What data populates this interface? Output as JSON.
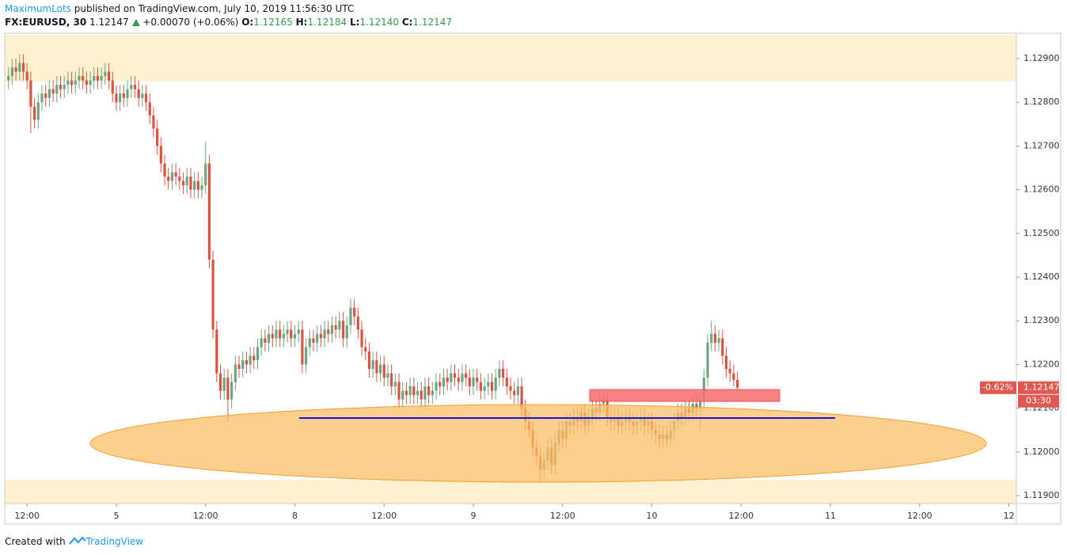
{
  "header": {
    "publisher": "MaximumLots",
    "published": "published on TradingView.com, July 10, 2019 11:56:30 UTC",
    "symbol": "FX:EURUSD, 30",
    "price": "1.12147",
    "change": "+0.00070 (+0.06%)",
    "open_label": "O:",
    "open": "1.12165",
    "high_label": "H:",
    "high": "1.12184",
    "low_label": "L:",
    "low": "1.12140",
    "close_label": "C:",
    "close": "1.12147"
  },
  "footer": {
    "text": "Created with",
    "brand": "TradingView"
  },
  "chart_data": {
    "type": "candlestick",
    "open": [
      1.1285,
      1.1286,
      1.1288,
      1.1287,
      1.1289,
      1.1287,
      1.1285,
      1.1279,
      1.1276,
      1.128,
      1.1282,
      1.1281,
      1.1283,
      1.1282,
      1.1284,
      1.1283,
      1.1284,
      1.1285,
      1.1284,
      1.1285,
      1.1286,
      1.1285,
      1.1284,
      1.1285,
      1.1286,
      1.1285,
      1.1286,
      1.1287,
      1.1285,
      1.1282,
      1.128,
      1.1282,
      1.1281,
      1.1283,
      1.1284,
      1.1283,
      1.1281,
      1.1282,
      1.128,
      1.1277,
      1.1274,
      1.127,
      1.1266,
      1.1263,
      1.1262,
      1.1264,
      1.1263,
      1.1262,
      1.1261,
      1.1263,
      1.126,
      1.1262,
      1.126,
      1.1261,
      1.1266,
      1.1244,
      1.1228,
      1.1218,
      1.1214,
      1.1217,
      1.1212,
      1.1216,
      1.122,
      1.1219,
      1.1221,
      1.122,
      1.1222,
      1.1221,
      1.1224,
      1.1226,
      1.1225,
      1.1227,
      1.1226,
      1.1228,
      1.1226,
      1.1227,
      1.1228,
      1.1226,
      1.1227,
      1.1228,
      1.122,
      1.1224,
      1.1226,
      1.1225,
      1.1227,
      1.1226,
      1.1228,
      1.1227,
      1.1229,
      1.1228,
      1.123,
      1.1226,
      1.1229,
      1.1233,
      1.1231,
      1.1228,
      1.1224,
      1.1223,
      1.1219,
      1.1221,
      1.1218,
      1.122,
      1.1217,
      1.1218,
      1.1215,
      1.1216,
      1.1212,
      1.1214,
      1.1213,
      1.1215,
      1.1213,
      1.1214,
      1.1212,
      1.1215,
      1.1213,
      1.1214,
      1.1216,
      1.1215,
      1.1217,
      1.1216,
      1.1218,
      1.1217,
      1.1216,
      1.1218,
      1.1217,
      1.1215,
      1.1217,
      1.1216,
      1.1214,
      1.1215,
      1.1216,
      1.1214,
      1.1217,
      1.1219,
      1.1217,
      1.1215,
      1.1214,
      1.1213,
      1.1215,
      1.121,
      1.1207,
      1.1205,
      1.1201,
      1.1199,
      1.1196,
      1.1198,
      1.1201,
      1.1197,
      1.1202,
      1.1205,
      1.1203,
      1.1207,
      1.1206,
      1.1208,
      1.1207,
      1.1209,
      1.1206,
      1.1208,
      1.121,
      1.1209,
      1.1211,
      1.1212,
      1.1208,
      1.1207,
      1.1208,
      1.1206,
      1.1207,
      1.1208,
      1.1207,
      1.1206,
      1.1207,
      1.1208,
      1.1206,
      1.1207,
      1.1205,
      1.1204,
      1.1203,
      1.1204,
      1.1203,
      1.1205,
      1.1207,
      1.1209,
      1.1208,
      1.121,
      1.1209,
      1.1211,
      1.121,
      1.1212,
      1.1217,
      1.1225,
      1.1227,
      1.1225,
      1.1226,
      1.1222,
      1.1219,
      1.1218,
      1.12165
    ],
    "high": [
      1.1288,
      1.129,
      1.129,
      1.1291,
      1.1291,
      1.1289,
      1.1287,
      1.1281,
      1.1282,
      1.1284,
      1.1284,
      1.1285,
      1.1285,
      1.1286,
      1.1286,
      1.1286,
      1.1287,
      1.1287,
      1.1287,
      1.1288,
      1.1288,
      1.1287,
      1.1287,
      1.1288,
      1.1288,
      1.1288,
      1.1289,
      1.1289,
      1.1287,
      1.1284,
      1.1284,
      1.1284,
      1.1285,
      1.1286,
      1.1286,
      1.1285,
      1.1284,
      1.1284,
      1.1282,
      1.1279,
      1.1276,
      1.1272,
      1.1268,
      1.1265,
      1.1266,
      1.1266,
      1.1265,
      1.1264,
      1.1265,
      1.1265,
      1.1264,
      1.1264,
      1.1263,
      1.1271,
      1.1268,
      1.1246,
      1.123,
      1.122,
      1.1219,
      1.1219,
      1.1218,
      1.1222,
      1.1222,
      1.1223,
      1.1223,
      1.1224,
      1.1224,
      1.1226,
      1.1228,
      1.1228,
      1.1229,
      1.1229,
      1.123,
      1.123,
      1.1229,
      1.123,
      1.123,
      1.1229,
      1.123,
      1.123,
      1.1226,
      1.1228,
      1.1228,
      1.1229,
      1.1229,
      1.123,
      1.123,
      1.1231,
      1.1231,
      1.1232,
      1.1232,
      1.1231,
      1.1235,
      1.1235,
      1.1233,
      1.123,
      1.1226,
      1.1225,
      1.1223,
      1.1223,
      1.1222,
      1.1222,
      1.122,
      1.122,
      1.1218,
      1.1218,
      1.1216,
      1.1216,
      1.1217,
      1.1217,
      1.1216,
      1.1216,
      1.1217,
      1.1217,
      1.1216,
      1.1218,
      1.1218,
      1.1219,
      1.1219,
      1.122,
      1.122,
      1.1219,
      1.122,
      1.122,
      1.1219,
      1.1219,
      1.1219,
      1.1218,
      1.1217,
      1.1218,
      1.1218,
      1.1219,
      1.1221,
      1.1221,
      1.1219,
      1.1217,
      1.1216,
      1.1217,
      1.1217,
      1.1212,
      1.1209,
      1.1207,
      1.1203,
      1.1201,
      1.12,
      1.1203,
      1.1203,
      1.1204,
      1.1207,
      1.1207,
      1.1209,
      1.1209,
      1.121,
      1.121,
      1.1211,
      1.1211,
      1.121,
      1.1212,
      1.1212,
      1.1213,
      1.1214,
      1.1214,
      1.121,
      1.121,
      1.121,
      1.1209,
      1.121,
      1.121,
      1.1209,
      1.1209,
      1.121,
      1.121,
      1.1209,
      1.1209,
      1.1207,
      1.1206,
      1.1206,
      1.1206,
      1.1207,
      1.1209,
      1.1211,
      1.1211,
      1.1212,
      1.1212,
      1.1213,
      1.1213,
      1.1214,
      1.1219,
      1.1227,
      1.123,
      1.1229,
      1.1228,
      1.1228,
      1.1224,
      1.1221,
      1.122,
      1.12184
    ],
    "low": [
      1.1283,
      1.1284,
      1.1285,
      1.1285,
      1.1285,
      1.1283,
      1.1273,
      1.1274,
      1.1274,
      1.1278,
      1.1279,
      1.1279,
      1.128,
      1.128,
      1.1281,
      1.1281,
      1.1282,
      1.1282,
      1.1282,
      1.1283,
      1.1283,
      1.1282,
      1.1282,
      1.1283,
      1.1283,
      1.1283,
      1.1284,
      1.1283,
      1.128,
      1.1278,
      1.1278,
      1.1279,
      1.1279,
      1.1281,
      1.1281,
      1.1279,
      1.1279,
      1.1278,
      1.1275,
      1.1272,
      1.1268,
      1.1264,
      1.1261,
      1.126,
      1.126,
      1.1261,
      1.126,
      1.1259,
      1.1259,
      1.1258,
      1.1258,
      1.1258,
      1.1258,
      1.1259,
      1.1242,
      1.1226,
      1.1216,
      1.1212,
      1.1212,
      1.1207,
      1.121,
      1.1214,
      1.1217,
      1.1217,
      1.1218,
      1.1218,
      1.1219,
      1.1219,
      1.1222,
      1.1223,
      1.1223,
      1.1224,
      1.1224,
      1.1224,
      1.1224,
      1.1225,
      1.1224,
      1.1224,
      1.1225,
      1.1218,
      1.1218,
      1.1222,
      1.1223,
      1.1223,
      1.1224,
      1.1224,
      1.1225,
      1.1225,
      1.1226,
      1.1226,
      1.1224,
      1.1224,
      1.1227,
      1.1229,
      1.1226,
      1.1222,
      1.1221,
      1.1217,
      1.1217,
      1.1216,
      1.1216,
      1.1215,
      1.1215,
      1.1213,
      1.1213,
      1.121,
      1.121,
      1.1211,
      1.1211,
      1.1211,
      1.1211,
      1.121,
      1.121,
      1.1211,
      1.1211,
      1.1212,
      1.1213,
      1.1213,
      1.1214,
      1.1214,
      1.1215,
      1.1214,
      1.1214,
      1.1215,
      1.1213,
      1.1213,
      1.1214,
      1.1212,
      1.1212,
      1.1213,
      1.1212,
      1.1212,
      1.1215,
      1.1215,
      1.1213,
      1.1212,
      1.1211,
      1.1211,
      1.1208,
      1.1205,
      1.1203,
      1.1199,
      1.1197,
      1.1193,
      1.1194,
      1.1196,
      1.1195,
      1.1195,
      1.12,
      1.1201,
      1.1201,
      1.1204,
      1.1204,
      1.1205,
      1.1205,
      1.1204,
      1.1204,
      1.1206,
      1.1207,
      1.1207,
      1.1209,
      1.1206,
      1.1205,
      1.1205,
      1.1204,
      1.1204,
      1.1205,
      1.1205,
      1.1204,
      1.1204,
      1.1205,
      1.1204,
      1.1204,
      1.1203,
      1.1202,
      1.1201,
      1.1201,
      1.1201,
      1.1201,
      1.1203,
      1.1205,
      1.1206,
      1.1206,
      1.1207,
      1.1207,
      1.1208,
      1.1205,
      1.121,
      1.1215,
      1.1223,
      1.1223,
      1.1223,
      1.122,
      1.1217,
      1.1216,
      1.1215,
      1.1214
    ],
    "close": [
      1.1286,
      1.1288,
      1.1287,
      1.1289,
      1.1287,
      1.1285,
      1.1279,
      1.1276,
      1.128,
      1.1282,
      1.1281,
      1.1283,
      1.1282,
      1.1284,
      1.1283,
      1.1284,
      1.1285,
      1.1284,
      1.1285,
      1.1286,
      1.1285,
      1.1284,
      1.1285,
      1.1286,
      1.1285,
      1.1286,
      1.1287,
      1.1285,
      1.1282,
      1.128,
      1.1282,
      1.1281,
      1.1283,
      1.1284,
      1.1283,
      1.1281,
      1.1282,
      1.128,
      1.1277,
      1.1274,
      1.127,
      1.1266,
      1.1263,
      1.1262,
      1.1264,
      1.1263,
      1.1262,
      1.1261,
      1.1263,
      1.126,
      1.1262,
      1.126,
      1.1261,
      1.1266,
      1.1244,
      1.1228,
      1.1218,
      1.1214,
      1.1217,
      1.1212,
      1.1216,
      1.122,
      1.1219,
      1.1221,
      1.122,
      1.1222,
      1.1221,
      1.1224,
      1.1226,
      1.1225,
      1.1227,
      1.1226,
      1.1228,
      1.1226,
      1.1227,
      1.1228,
      1.1226,
      1.1227,
      1.1228,
      1.122,
      1.1224,
      1.1226,
      1.1225,
      1.1227,
      1.1226,
      1.1228,
      1.1227,
      1.1229,
      1.1228,
      1.123,
      1.1226,
      1.1229,
      1.1233,
      1.1231,
      1.1228,
      1.1224,
      1.1223,
      1.1219,
      1.1221,
      1.1218,
      1.122,
      1.1217,
      1.1218,
      1.1215,
      1.1216,
      1.1212,
      1.1214,
      1.1213,
      1.1215,
      1.1213,
      1.1214,
      1.1212,
      1.1215,
      1.1213,
      1.1214,
      1.1216,
      1.1215,
      1.1217,
      1.1216,
      1.1218,
      1.1217,
      1.1216,
      1.1218,
      1.1217,
      1.1215,
      1.1217,
      1.1216,
      1.1214,
      1.1215,
      1.1216,
      1.1214,
      1.1217,
      1.1219,
      1.1217,
      1.1215,
      1.1214,
      1.1213,
      1.1215,
      1.121,
      1.1207,
      1.1205,
      1.1201,
      1.1199,
      1.1196,
      1.1198,
      1.1201,
      1.1197,
      1.1202,
      1.1205,
      1.1203,
      1.1207,
      1.1206,
      1.1208,
      1.1207,
      1.1209,
      1.1206,
      1.1208,
      1.121,
      1.1209,
      1.1211,
      1.1212,
      1.1208,
      1.1207,
      1.1208,
      1.1206,
      1.1207,
      1.1208,
      1.1207,
      1.1206,
      1.1207,
      1.1208,
      1.1206,
      1.1207,
      1.1205,
      1.1204,
      1.1203,
      1.1204,
      1.1203,
      1.1205,
      1.1207,
      1.1209,
      1.1208,
      1.121,
      1.1209,
      1.1211,
      1.121,
      1.1212,
      1.1217,
      1.1225,
      1.1227,
      1.1225,
      1.1226,
      1.1222,
      1.1219,
      1.1218,
      1.12165,
      1.12147
    ],
    "up_color": "#6ba583",
    "down_color": "#d75442",
    "xlim": [
      -1,
      271
    ],
    "xticks": [
      {
        "value": 5,
        "label": "12:00"
      },
      {
        "value": 29,
        "label": "5"
      },
      {
        "value": 53,
        "label": "12:00"
      },
      {
        "value": 77,
        "label": "8"
      },
      {
        "value": 101,
        "label": "12:00"
      },
      {
        "value": 125,
        "label": "9"
      },
      {
        "value": 149,
        "label": "12:00"
      },
      {
        "value": 173,
        "label": "10"
      },
      {
        "value": 197,
        "label": "12:00"
      },
      {
        "value": 221,
        "label": "11"
      },
      {
        "value": 245,
        "label": "12:00"
      },
      {
        "value": 269,
        "label": "12"
      }
    ],
    "ylim": [
      1.11882,
      1.12958
    ],
    "yticks": [
      {
        "value": 1.119,
        "label": "1.11900"
      },
      {
        "value": 1.12,
        "label": "1.12000"
      },
      {
        "value": 1.121,
        "label": "1.12100"
      },
      {
        "value": 1.122,
        "label": "1.12200"
      },
      {
        "value": 1.123,
        "label": "1.12300"
      },
      {
        "value": 1.124,
        "label": "1.12400"
      },
      {
        "value": 1.125,
        "label": "1.12500"
      },
      {
        "value": 1.126,
        "label": "1.12600"
      },
      {
        "value": 1.127,
        "label": "1.12700"
      },
      {
        "value": 1.128,
        "label": "1.12800"
      },
      {
        "value": 1.129,
        "label": "1.12900"
      }
    ],
    "last_price_label": "1.12147",
    "change_label": "-0.62%",
    "countdown": "03:30"
  }
}
